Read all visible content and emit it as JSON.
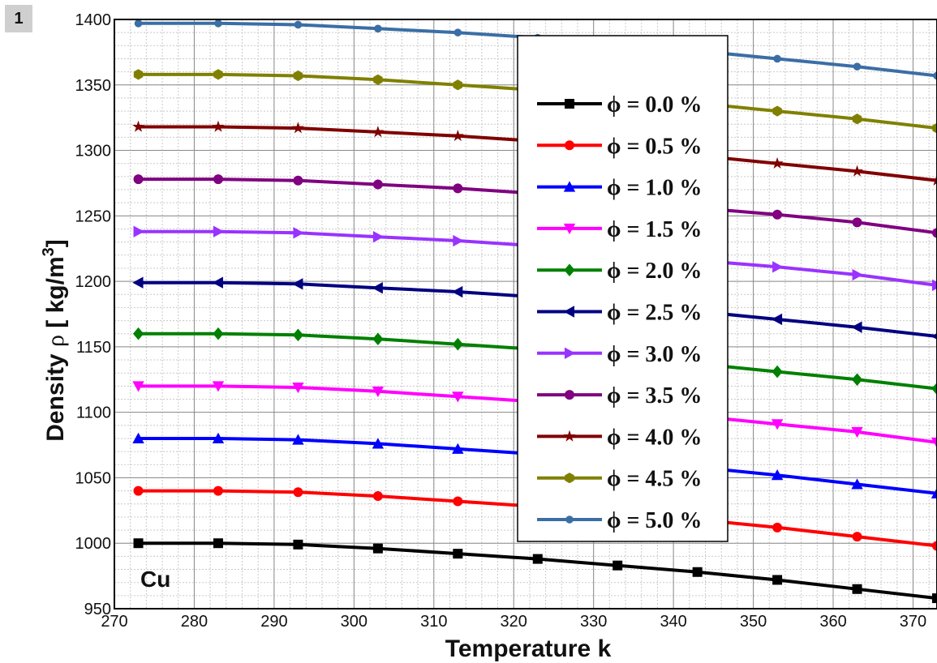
{
  "panel_label": "1",
  "chart_data": {
    "type": "line",
    "title": "",
    "xlabel": "Temperature k",
    "ylabel": "Density ρ [ kg/m³ ]",
    "ylabel_parts": {
      "prefix": "Density ",
      "rho": "ρ",
      "unit": " [ kg/m",
      "sup": "3",
      "close": "]"
    },
    "xlim": [
      270,
      373
    ],
    "ylim": [
      950,
      1400
    ],
    "xticks": [
      270,
      280,
      290,
      300,
      310,
      320,
      330,
      340,
      350,
      360,
      370
    ],
    "yticks": [
      950,
      1000,
      1050,
      1100,
      1150,
      1200,
      1250,
      1300,
      1350,
      1400
    ],
    "grid": true,
    "legend_position": "center-right",
    "annotation": "Cu",
    "x": [
      273,
      283,
      293,
      303,
      313,
      323,
      333,
      343,
      353,
      363,
      373
    ],
    "series": [
      {
        "name": "ϕ = 0.0 %",
        "color": "#000000",
        "marker": "square",
        "values": [
          1000,
          1000,
          999,
          996,
          992,
          988,
          983,
          978,
          972,
          965,
          958
        ]
      },
      {
        "name": "ϕ = 0.5 %",
        "color": "#ff0000",
        "marker": "circle",
        "values": [
          1040,
          1040,
          1039,
          1036,
          1032,
          1028,
          1023,
          1018,
          1012,
          1005,
          998
        ]
      },
      {
        "name": "ϕ = 1.0 %",
        "color": "#0000ff",
        "marker": "triangle-up",
        "values": [
          1080,
          1080,
          1079,
          1076,
          1072,
          1068,
          1063,
          1058,
          1052,
          1045,
          1038
        ]
      },
      {
        "name": "ϕ = 1.5 %",
        "color": "#ff00ff",
        "marker": "triangle-down",
        "values": [
          1120,
          1120,
          1119,
          1116,
          1112,
          1108,
          1103,
          1097,
          1091,
          1085,
          1077
        ]
      },
      {
        "name": "ϕ = 2.0 %",
        "color": "#008000",
        "marker": "diamond",
        "values": [
          1160,
          1160,
          1159,
          1156,
          1152,
          1148,
          1143,
          1137,
          1131,
          1125,
          1118
        ]
      },
      {
        "name": "ϕ = 2.5 %",
        "color": "#000080",
        "marker": "triangle-left",
        "values": [
          1199,
          1199,
          1198,
          1195,
          1192,
          1188,
          1183,
          1177,
          1171,
          1165,
          1158
        ]
      },
      {
        "name": "ϕ = 3.0 %",
        "color": "#9933ff",
        "marker": "triangle-right",
        "values": [
          1238,
          1238,
          1237,
          1234,
          1231,
          1227,
          1222,
          1216,
          1211,
          1205,
          1197
        ]
      },
      {
        "name": "ϕ = 3.5 %",
        "color": "#800080",
        "marker": "circle",
        "values": [
          1278,
          1278,
          1277,
          1274,
          1271,
          1267,
          1262,
          1256,
          1251,
          1245,
          1237
        ]
      },
      {
        "name": "ϕ = 4.0 %",
        "color": "#800000",
        "marker": "star",
        "values": [
          1318,
          1318,
          1317,
          1314,
          1311,
          1307,
          1302,
          1296,
          1290,
          1284,
          1277
        ]
      },
      {
        "name": "ϕ = 4.5 %",
        "color": "#808000",
        "marker": "hexagon",
        "values": [
          1358,
          1358,
          1357,
          1354,
          1350,
          1346,
          1341,
          1336,
          1330,
          1324,
          1317
        ]
      },
      {
        "name": "ϕ = 5.0 %",
        "color": "#3a6ea5",
        "marker": "circle-small",
        "values": [
          1397,
          1397,
          1396,
          1393,
          1390,
          1386,
          1381,
          1376,
          1370,
          1364,
          1357
        ]
      }
    ]
  }
}
